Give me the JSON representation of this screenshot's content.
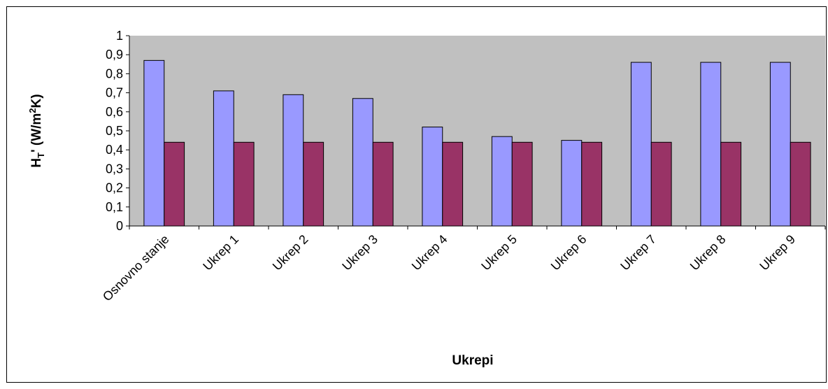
{
  "chart_data": {
    "type": "bar",
    "xlabel": "Ukrepi",
    "ylabel": [
      "H",
      "T",
      "' (W/m",
      "2",
      "K)"
    ],
    "categories": [
      "Osnovno stanje",
      "Ukrep 1",
      "Ukrep 2",
      "Ukrep 3",
      "Ukrep 4",
      "Ukrep 5",
      "Ukrep 6",
      "Ukrep 7",
      "Ukrep 8",
      "Ukrep 9"
    ],
    "series": [
      {
        "color": "#9999ff",
        "values": [
          0.87,
          0.71,
          0.69,
          0.67,
          0.52,
          0.47,
          0.45,
          0.86,
          0.86,
          0.86
        ]
      },
      {
        "color": "#993366",
        "values": [
          0.44,
          0.44,
          0.44,
          0.44,
          0.44,
          0.44,
          0.44,
          0.44,
          0.44,
          0.44
        ]
      }
    ],
    "ylim": [
      0,
      1
    ],
    "yticks": [
      0,
      {
        "value": 0.1,
        "label": "0,1"
      },
      {
        "value": 0.2,
        "label": "0,2"
      },
      {
        "value": 0.3,
        "label": "0,3"
      },
      {
        "value": 0.4,
        "label": "0,4"
      },
      {
        "value": 0.5,
        "label": "0,5"
      },
      {
        "value": 0.6,
        "label": "0,6"
      },
      {
        "value": 0.7,
        "label": "0,7"
      },
      {
        "value": 0.8,
        "label": "0,8"
      },
      {
        "value": 0.9,
        "label": "0,9"
      },
      1
    ],
    "plot_background": "#c0c0c0"
  }
}
